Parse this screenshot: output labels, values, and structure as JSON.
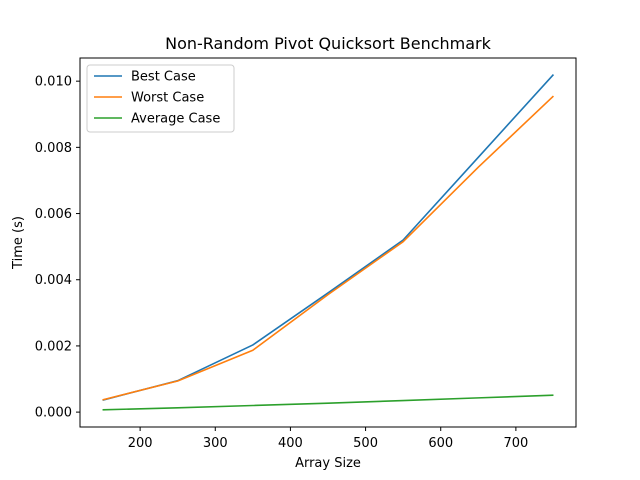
{
  "chart_data": {
    "type": "line",
    "title": "Non-Random Pivot Quicksort Benchmark",
    "xlabel": "Array Size",
    "ylabel": "Time (s)",
    "xlim": [
      120,
      780
    ],
    "ylim": [
      -0.00045,
      0.0107
    ],
    "xticks": [
      200,
      300,
      400,
      500,
      600,
      700
    ],
    "xtick_labels": [
      "200",
      "300",
      "400",
      "500",
      "600",
      "700"
    ],
    "yticks": [
      0,
      0.002,
      0.004,
      0.006,
      0.008,
      0.01
    ],
    "ytick_labels": [
      "0.000",
      "0.002",
      "0.004",
      "0.006",
      "0.008",
      "0.010"
    ],
    "grid": false,
    "legend_position": "upper left",
    "series": [
      {
        "name": "Best Case",
        "color": "#1f77b4",
        "x": [
          150,
          250,
          350,
          450,
          550,
          650,
          750
        ],
        "y": [
          0.00036,
          0.00095,
          0.00203,
          0.0036,
          0.0052,
          0.0077,
          0.0102
        ]
      },
      {
        "name": "Worst Case",
        "color": "#ff7f0e",
        "x": [
          150,
          250,
          350,
          450,
          550,
          650,
          750
        ],
        "y": [
          0.00037,
          0.00094,
          0.00187,
          0.00355,
          0.00515,
          0.0074,
          0.00955
        ]
      },
      {
        "name": "Average Case",
        "color": "#2ca02c",
        "x": [
          150,
          250,
          350,
          450,
          550,
          650,
          750
        ],
        "y": [
          7e-05,
          0.00013,
          0.0002,
          0.00027,
          0.00035,
          0.00043,
          0.00051
        ]
      }
    ]
  }
}
